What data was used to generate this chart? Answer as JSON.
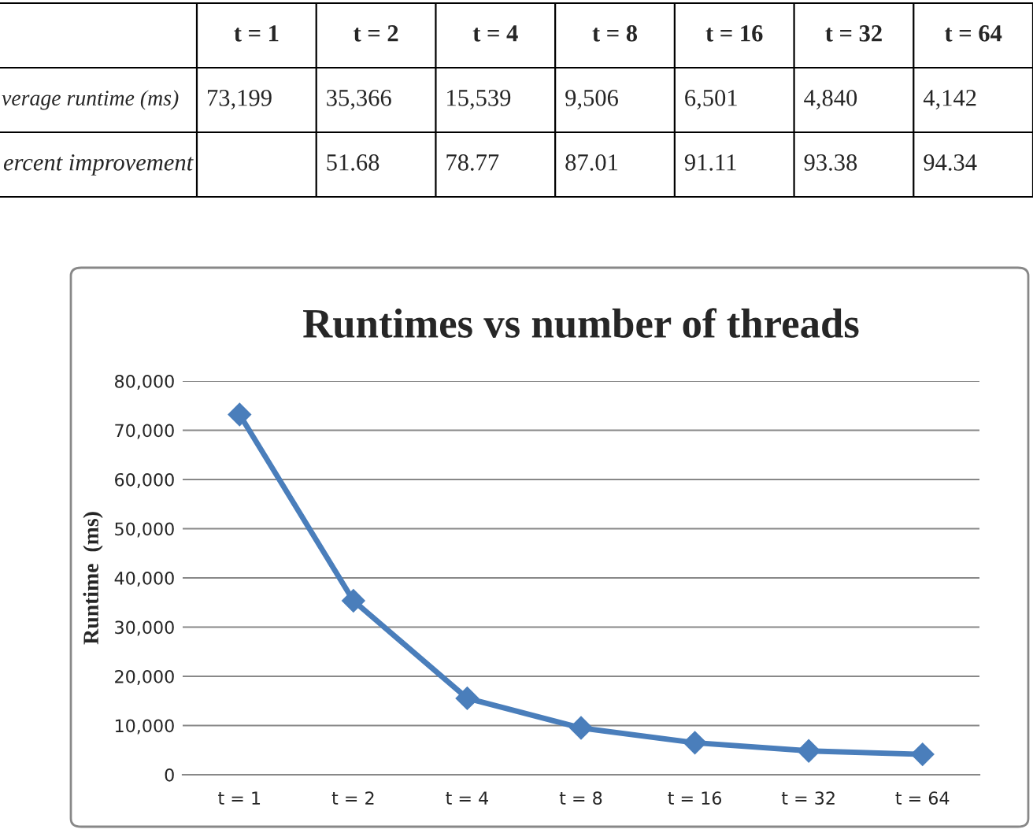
{
  "chart_data": {
    "type": "line",
    "title": "Runtimes vs number of threads",
    "ylabel": "Runtime  (ms)",
    "categories": [
      "t = 1",
      "t = 2",
      "t = 4",
      "t = 8",
      "t = 16",
      "t = 32",
      "t = 64"
    ],
    "values": [
      73199,
      35366,
      15539,
      9506,
      6501,
      4840,
      4142
    ],
    "value_labels": [
      "73,199",
      "35,366",
      "15,539",
      "9,506",
      "6,501",
      "4,840",
      "4,142"
    ],
    "color": "#4a7ebb",
    "marker": "diamond",
    "grid": "y",
    "ylim": [
      0,
      80000
    ],
    "yticks": [
      {
        "value": 0,
        "label": "0"
      },
      {
        "value": 10000,
        "label": "10,000"
      },
      {
        "value": 20000,
        "label": "20,000"
      },
      {
        "value": 30000,
        "label": "30,000"
      },
      {
        "value": 40000,
        "label": "40,000"
      },
      {
        "value": 50000,
        "label": "50,000"
      },
      {
        "value": 60000,
        "label": "60,000"
      },
      {
        "value": 70000,
        "label": "70,000"
      },
      {
        "value": 80000,
        "label": "80,000"
      }
    ],
    "annotations": [
      "verage runtime (ms)",
      "ercent improvement",
      "51.68",
      "78.77",
      "87.01",
      "91.11",
      "93.38",
      "94.34"
    ]
  }
}
